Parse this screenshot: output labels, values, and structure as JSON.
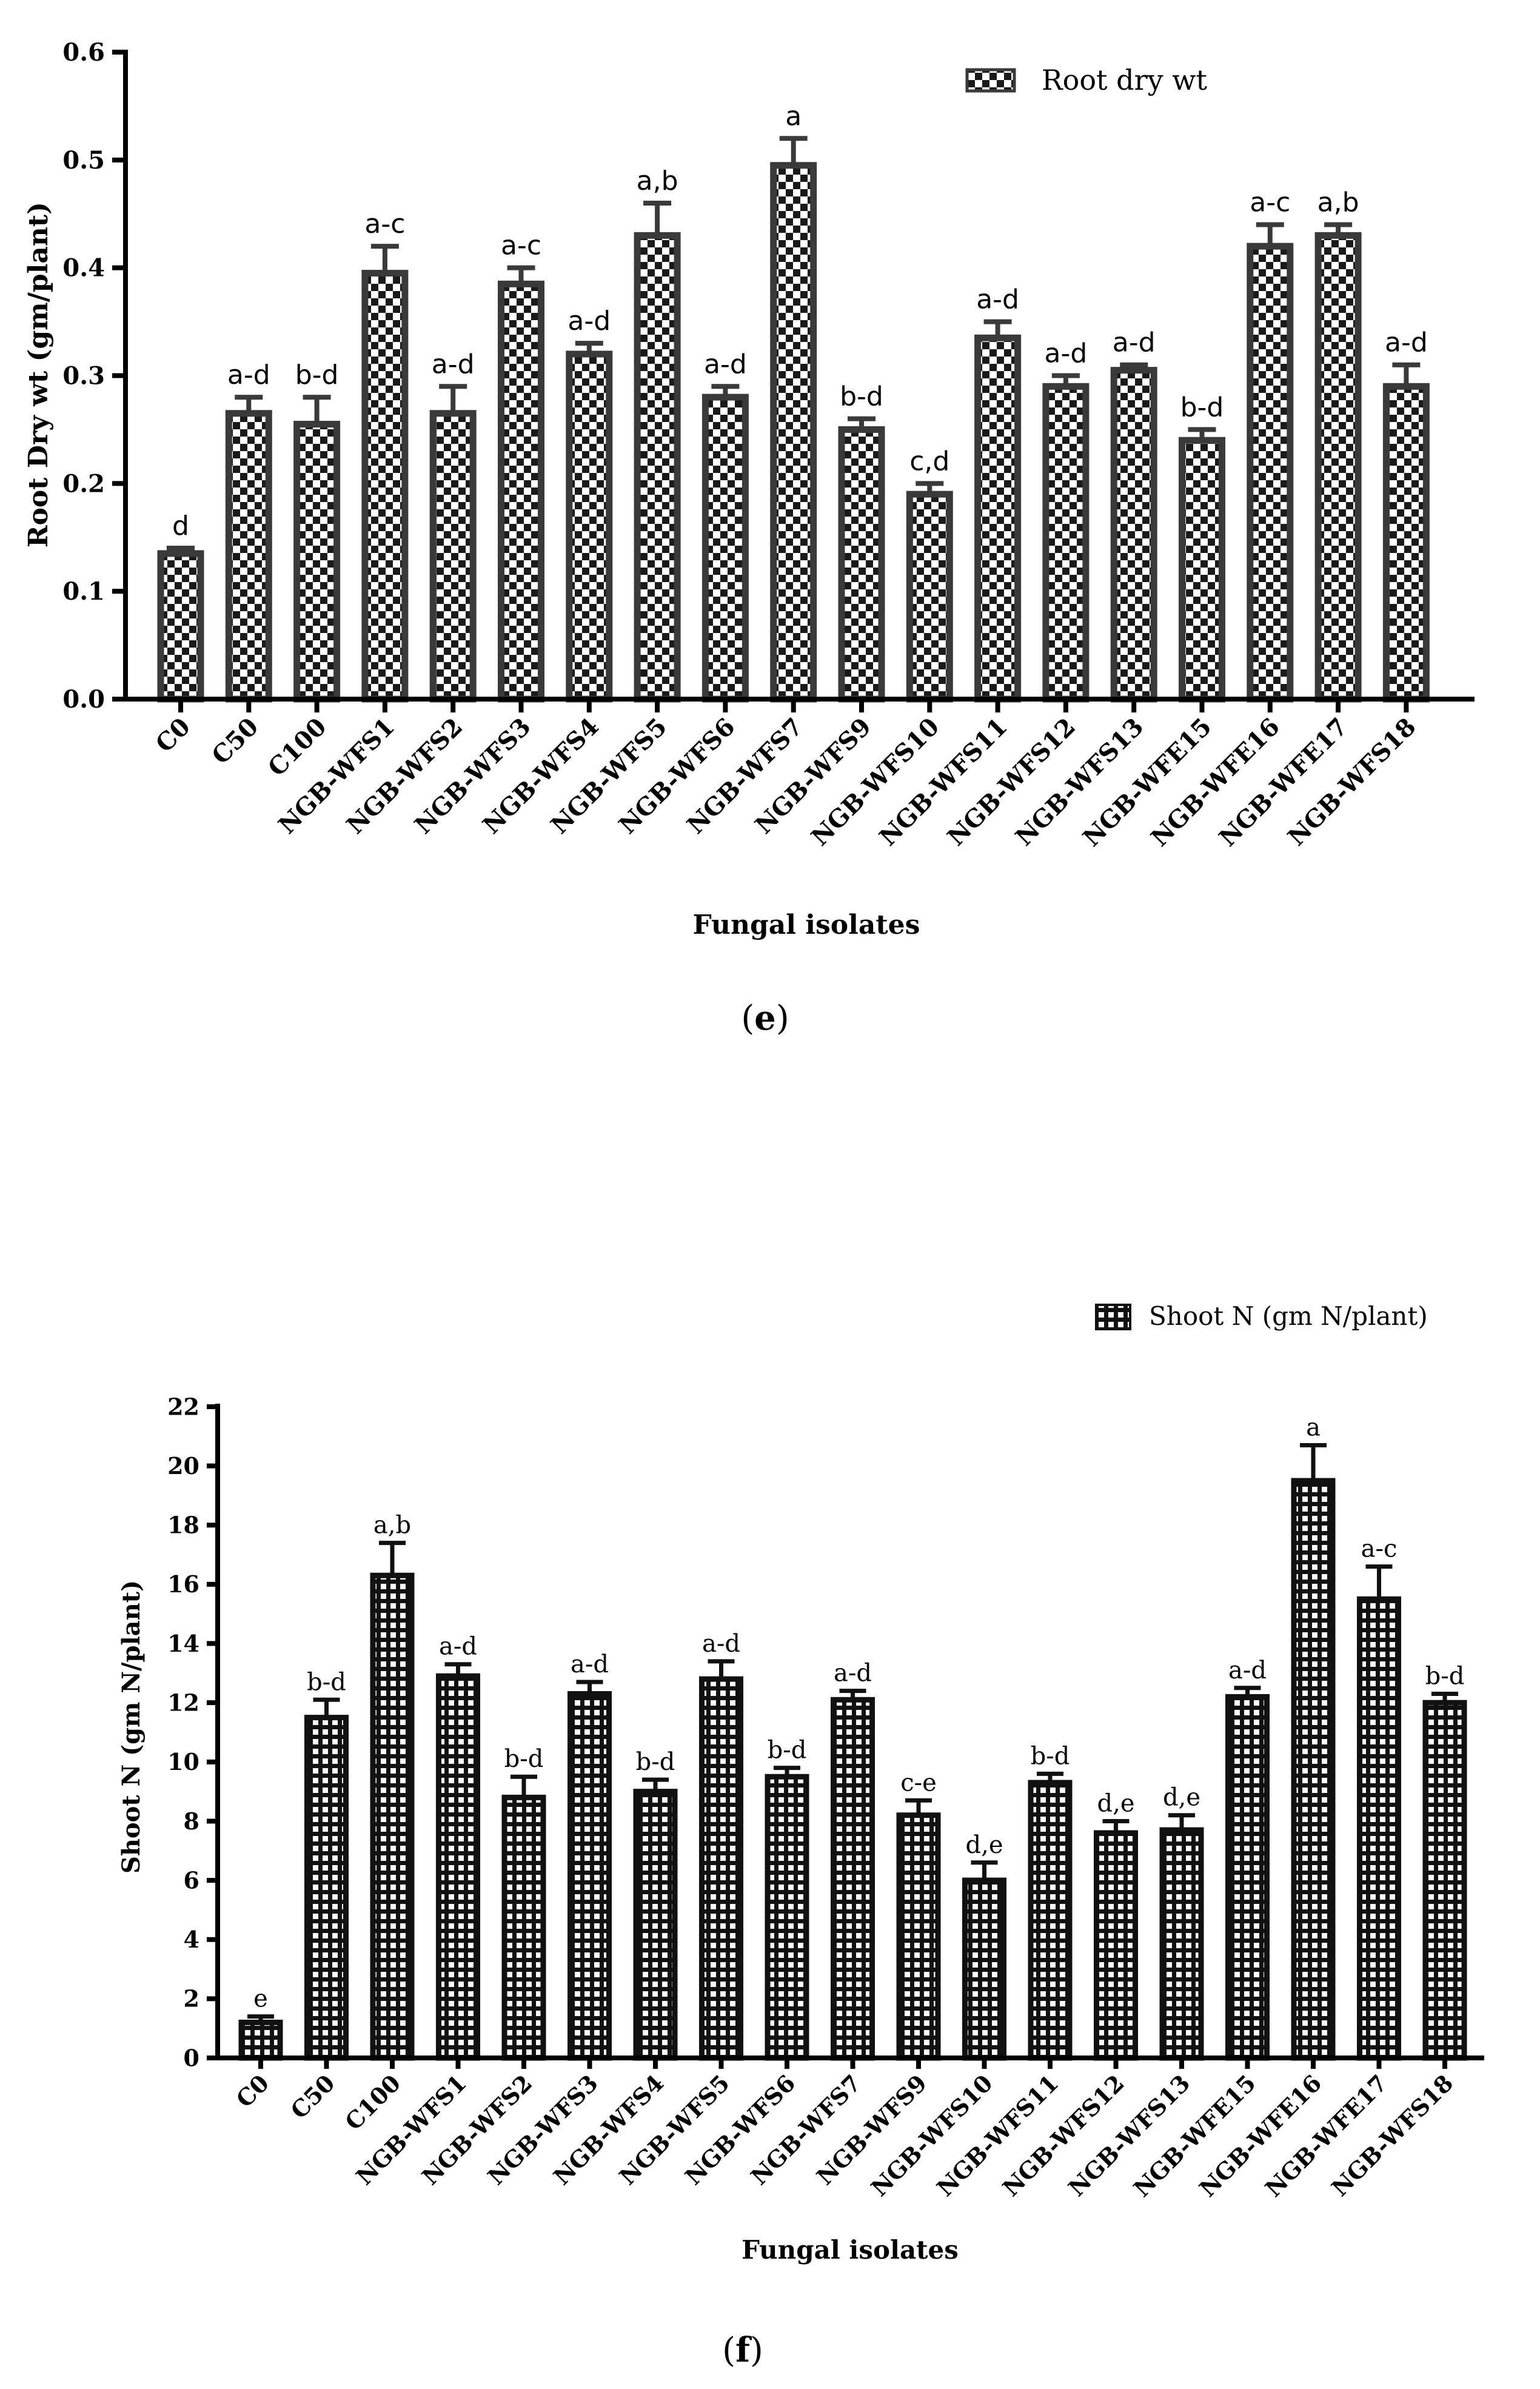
{
  "chart_data": [
    {
      "panel": "e",
      "panel_label_open": "(",
      "panel_label_letter": "e",
      "panel_label_close": ")",
      "type": "bar",
      "title": "",
      "xlabel": "Fungal isolates",
      "ylabel": "Root Dry wt (gm/plant)",
      "legend": {
        "label": "Root dry wt",
        "placement": "top-right"
      },
      "ylim": [
        0,
        0.6
      ],
      "yticks": [
        "0.0",
        "0.1",
        "0.2",
        "0.3",
        "0.4",
        "0.5",
        "0.6"
      ],
      "categories": [
        "C0",
        "C50",
        "C100",
        "NGB-WFS1",
        "NGB-WFS2",
        "NGB-WFS3",
        "NGB-WFS4",
        "NGB-WFS5",
        "NGB-WFS6",
        "NGB-WFS7",
        "NGB-WFS9",
        "NGB-WFS10",
        "NGB-WFS11",
        "NGB-WFS12",
        "NGB-WFS13",
        "NGB-WFE15",
        "NGB-WFE16",
        "NGB-WFE17",
        "NGB-WFS18"
      ],
      "values": [
        0.135,
        0.265,
        0.255,
        0.395,
        0.265,
        0.385,
        0.32,
        0.43,
        0.28,
        0.495,
        0.25,
        0.19,
        0.335,
        0.29,
        0.305,
        0.24,
        0.42,
        0.43,
        0.29
      ],
      "errors": [
        0.005,
        0.015,
        0.025,
        0.025,
        0.025,
        0.015,
        0.01,
        0.03,
        0.01,
        0.025,
        0.01,
        0.01,
        0.015,
        0.01,
        0.005,
        0.01,
        0.02,
        0.01,
        0.02
      ],
      "letters": [
        "d",
        "a-d",
        "b-d",
        "a-c",
        "a-d",
        "a-c",
        "a-d",
        "a,b",
        "a-d",
        "a",
        "b-d",
        "c,d",
        "a-d",
        "a-d",
        "a-d",
        "b-d",
        "a-c",
        "a,b",
        "a-d"
      ]
    },
    {
      "panel": "f",
      "panel_label_open": "(",
      "panel_label_letter": "f",
      "panel_label_close": ")",
      "type": "bar",
      "title": "",
      "xlabel": "Fungal isolates",
      "ylabel": "Shoot N (gm N/plant)",
      "legend": {
        "label": "Shoot N (gm N/plant)",
        "placement": "top-right"
      },
      "ylim": [
        0,
        22
      ],
      "yticks": [
        "0",
        "2",
        "4",
        "6",
        "8",
        "10",
        "12",
        "14",
        "16",
        "18",
        "20",
        "22"
      ],
      "categories": [
        "C0",
        "C50",
        "C100",
        "NGB-WFS1",
        "NGB-WFS2",
        "NGB-WFS3",
        "NGB-WFS4",
        "NGB-WFS5",
        "NGB-WFS6",
        "NGB-WFS7",
        "NGB-WFS9",
        "NGB-WFS10",
        "NGB-WFS11",
        "NGB-WFS12",
        "NGB-WFS13",
        "NGB-WFE15",
        "NGB-WFE16",
        "NGB-WFE17",
        "NGB-WFS18"
      ],
      "values": [
        1.2,
        11.5,
        16.3,
        12.9,
        8.8,
        12.3,
        9.0,
        12.8,
        9.5,
        12.1,
        8.2,
        6.0,
        9.3,
        7.6,
        7.7,
        12.2,
        19.5,
        15.5,
        12.0
      ],
      "errors": [
        0.2,
        0.6,
        1.1,
        0.4,
        0.7,
        0.4,
        0.4,
        0.6,
        0.3,
        0.3,
        0.5,
        0.6,
        0.3,
        0.4,
        0.5,
        0.3,
        1.2,
        1.1,
        0.3
      ],
      "letters": [
        "e",
        "b-d",
        "a,b",
        "a-d",
        "b-d",
        "a-d",
        "b-d",
        "a-d",
        "b-d",
        "a-d",
        "c-e",
        "d,e",
        "b-d",
        "d,e",
        "d,e",
        "a-d",
        "a",
        "a-c",
        "b-d"
      ]
    }
  ]
}
